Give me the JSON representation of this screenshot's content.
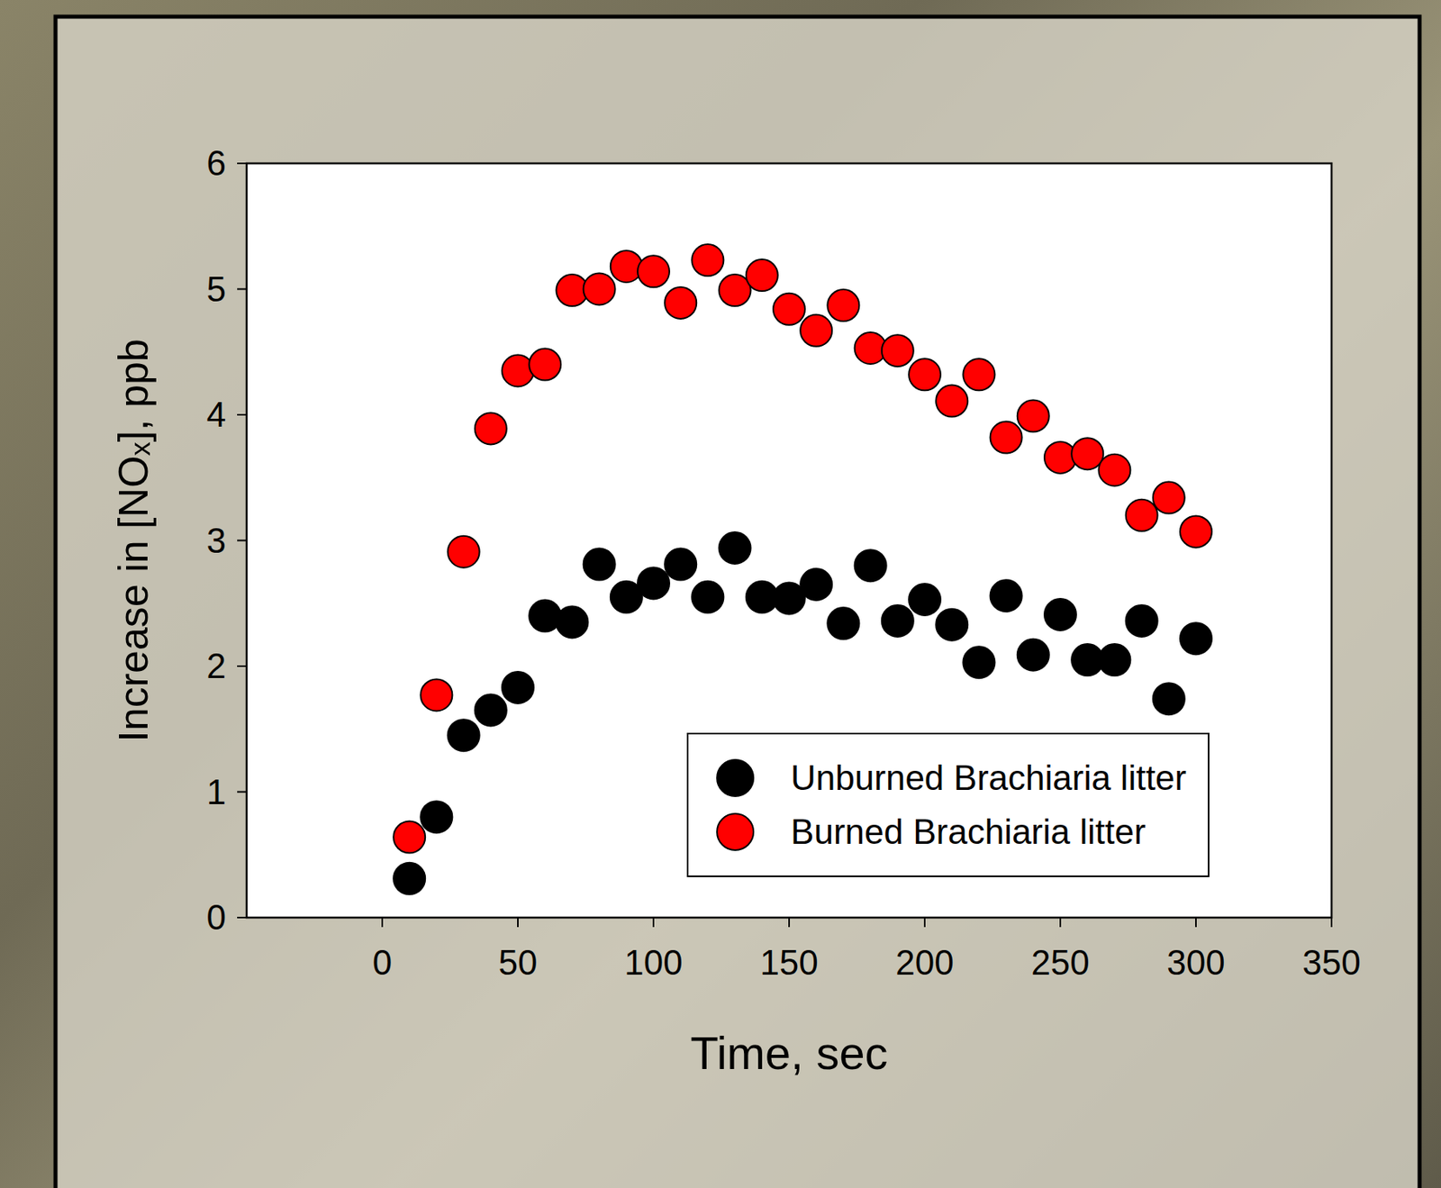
{
  "chart_data": {
    "type": "scatter",
    "x_label": "Time, sec",
    "y_label": "Increase in [NOₓ], ppb",
    "x": [
      10,
      20,
      30,
      40,
      50,
      60,
      70,
      80,
      90,
      100,
      110,
      120,
      130,
      140,
      150,
      160,
      170,
      180,
      190,
      200,
      210,
      220,
      230,
      240,
      250,
      260,
      270,
      280,
      290,
      300
    ],
    "series": [
      {
        "name": "Unburned Brachiaria litter",
        "color": "#000000",
        "marker": "circle",
        "values": [
          0.31,
          0.8,
          1.45,
          1.65,
          1.83,
          2.4,
          2.35,
          2.81,
          2.55,
          2.66,
          2.81,
          2.55,
          2.94,
          2.55,
          2.54,
          2.65,
          2.34,
          2.8,
          2.36,
          2.53,
          2.33,
          2.03,
          2.56,
          2.09,
          2.41,
          2.05,
          2.05,
          2.36,
          1.74,
          2.22
        ]
      },
      {
        "name": "Burned Brachiaria litter",
        "color": "#ff0000",
        "marker": "circle",
        "values": [
          0.64,
          1.77,
          2.91,
          3.89,
          4.35,
          4.4,
          4.99,
          5.0,
          5.18,
          5.14,
          4.89,
          5.23,
          4.99,
          5.11,
          4.84,
          4.67,
          4.87,
          4.53,
          4.51,
          4.32,
          4.11,
          4.32,
          3.82,
          3.99,
          3.66,
          3.69,
          3.56,
          3.2,
          3.34,
          3.07
        ]
      }
    ],
    "xlim": [
      -50,
      350
    ],
    "xticks": [
      0,
      50,
      100,
      150,
      200,
      250,
      300,
      350
    ],
    "ylim": [
      0,
      6
    ],
    "yticks": [
      0,
      1,
      2,
      3,
      4,
      5,
      6
    ],
    "grid": false,
    "legend": "lower right"
  }
}
